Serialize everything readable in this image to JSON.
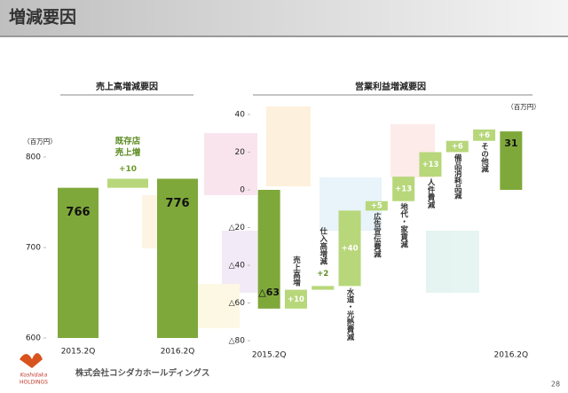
{
  "page_title": "増減要因",
  "page_number": "28",
  "company": "株式会社コシダカホールディングス",
  "logo": {
    "name": "Koshidaka",
    "sub": "HOLDINGS"
  },
  "chart_data": [
    {
      "type": "waterfall",
      "title": "売上高増減要因",
      "unit": "（百万円）",
      "categories": [
        "2015.2Q",
        "既存店売上増",
        "2016.2Q"
      ],
      "values": [
        766,
        10,
        776
      ],
      "value_labels": [
        "766",
        "+10",
        "776"
      ],
      "measure": [
        "total",
        "relative",
        "total"
      ],
      "colors": {
        "total": "#7fa83a",
        "relative": "#b7d77a"
      },
      "ylim": [
        600,
        800
      ],
      "yticks": [
        600,
        700,
        800
      ]
    },
    {
      "type": "waterfall",
      "title": "営業利益増減要因",
      "unit": "（百万円）",
      "categories": [
        "2015.2Q",
        "売上高増",
        "仕入高増減",
        "水道・光熱費減",
        "広告宣伝費減",
        "地代・家賃減",
        "人件費減",
        "備品消耗品減",
        "その他減",
        "2016.2Q"
      ],
      "values": [
        -63,
        10,
        2,
        40,
        5,
        13,
        13,
        6,
        6,
        31
      ],
      "value_labels": [
        "△63",
        "+10",
        "+2",
        "+40",
        "+5",
        "+13",
        "+13",
        "+6",
        "+6",
        "31"
      ],
      "measure": [
        "total",
        "relative",
        "relative",
        "relative",
        "relative",
        "relative",
        "relative",
        "relative",
        "relative",
        "total"
      ],
      "colors": {
        "total": "#7fa83a",
        "relative": "#b7d77a"
      },
      "ylim": [
        -80,
        40
      ],
      "yticks": [
        {
          "value": -80,
          "label": "△80"
        },
        {
          "value": -60,
          "label": "△60"
        },
        {
          "value": -40,
          "label": "△40"
        },
        {
          "value": -20,
          "label": "△20"
        },
        0,
        20,
        40
      ]
    }
  ]
}
